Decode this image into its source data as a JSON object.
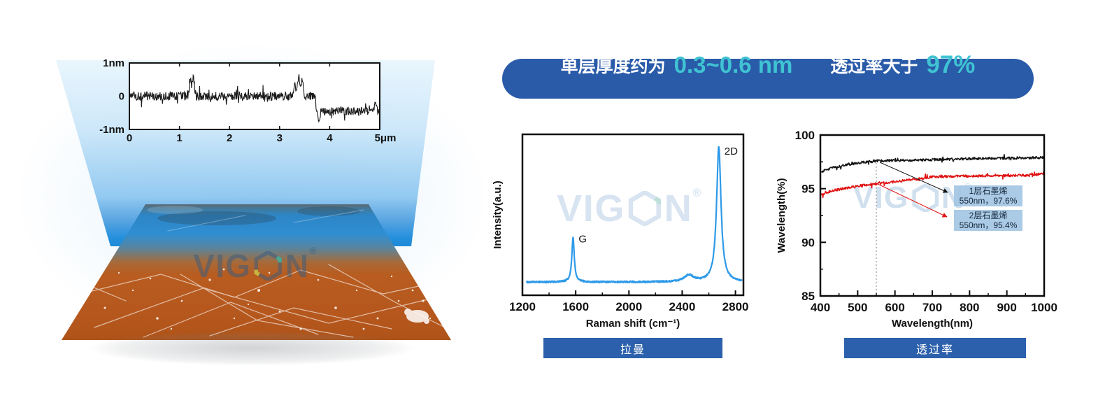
{
  "banner": {
    "prefix": "单层厚度约为",
    "thickness_value": "0.3~0.6 nm",
    "middle": "透过率大于",
    "transmittance_value": "97%"
  },
  "watermark": {
    "part1": "VIG",
    "part2": "N",
    "registered": "®"
  },
  "colors": {
    "banner_bg": "#2a5ba9",
    "accent_teal": "#3fc3d2",
    "button_bg": "#2c60ac",
    "raman_line": "#2e9ae8",
    "series_1layer": "#141414",
    "series_2layer": "#e01212",
    "annotation_bg": "#a3c6e3"
  },
  "chart_data": [
    {
      "id": "afm_height_profile",
      "type": "line",
      "xlim": [
        0,
        5
      ],
      "ylim": [
        -1,
        1
      ],
      "xtick_labels": [
        "0",
        "1",
        "2",
        "3",
        "4",
        "5μm"
      ],
      "ytick_labels": [
        "1nm",
        "0",
        "-1nm"
      ],
      "line_color": "#1a1a1a",
      "baseline_segments": [
        {
          "from": 0,
          "to": 3.72,
          "level": 0
        },
        {
          "from": 3.72,
          "to": 5,
          "level": -0.45
        }
      ],
      "noise_amplitude": 0.13,
      "spikes": [
        {
          "x": 1.22,
          "h": 0.42
        },
        {
          "x": 1.28,
          "h": 0.52
        },
        {
          "x": 3.3,
          "h": 0.38
        },
        {
          "x": 3.38,
          "h": 0.58
        },
        {
          "x": 3.45,
          "h": 0.45
        },
        {
          "x": 3.78,
          "h": -0.3
        },
        {
          "x": 4.93,
          "h": 0.3
        }
      ],
      "description": "AFM height profile with ~0.5 nm step at 3.7 μm"
    },
    {
      "id": "raman_spectrum",
      "type": "line",
      "xlabel": "Raman shift (cm⁻¹)",
      "ylabel": "Intensity(a.u.)",
      "xlim": [
        1200,
        2860
      ],
      "xticks": [
        1200,
        1600,
        2000,
        2400,
        2800
      ],
      "line_color": "#2e9ae8",
      "baseline": 0.025,
      "noise_amplitude": 0.006,
      "peaks": [
        {
          "label": "G",
          "center": 1580,
          "height": 0.33,
          "width": 11
        },
        {
          "label": "",
          "center": 2450,
          "height": 0.05,
          "width": 42
        },
        {
          "label": "2D",
          "center": 2675,
          "height": 1.0,
          "width": 20
        }
      ],
      "caption": "拉曼"
    },
    {
      "id": "transmittance",
      "type": "line",
      "xlabel": "Wavelength(nm)",
      "ylabel": "Wavelength(%)",
      "xlim": [
        400,
        1000
      ],
      "ylim": [
        85,
        100
      ],
      "xticks": [
        400,
        500,
        600,
        700,
        800,
        900,
        1000
      ],
      "yticks": [
        100,
        95,
        90,
        85
      ],
      "vline_x": 550,
      "series": [
        {
          "name": "1层石墨烯",
          "color": "#141414",
          "noise": 0.11,
          "anchors": [
            [
              400,
              96.5
            ],
            [
              415,
              96.8
            ],
            [
              440,
              97.0
            ],
            [
              470,
              97.25
            ],
            [
              510,
              97.45
            ],
            [
              550,
              97.6
            ],
            [
              620,
              97.65
            ],
            [
              700,
              97.7
            ],
            [
              800,
              97.8
            ],
            [
              900,
              97.85
            ],
            [
              1000,
              97.9
            ]
          ]
        },
        {
          "name": "2层石墨烯",
          "color": "#e01212",
          "noise": 0.11,
          "anchors": [
            [
              400,
              94.4
            ],
            [
              430,
              94.8
            ],
            [
              470,
              95.05
            ],
            [
              510,
              95.3
            ],
            [
              550,
              95.45
            ],
            [
              600,
              95.65
            ],
            [
              650,
              95.85
            ],
            [
              700,
              96.1
            ],
            [
              750,
              96.15
            ],
            [
              850,
              96.2
            ],
            [
              950,
              96.25
            ],
            [
              1000,
              96.4
            ]
          ]
        }
      ],
      "annotations": [
        {
          "title": "1层石墨烯",
          "value": "550nm，97.6%"
        },
        {
          "title": "2层石墨烯",
          "value": "550nm，95.4%"
        }
      ],
      "caption": "透过率"
    }
  ]
}
